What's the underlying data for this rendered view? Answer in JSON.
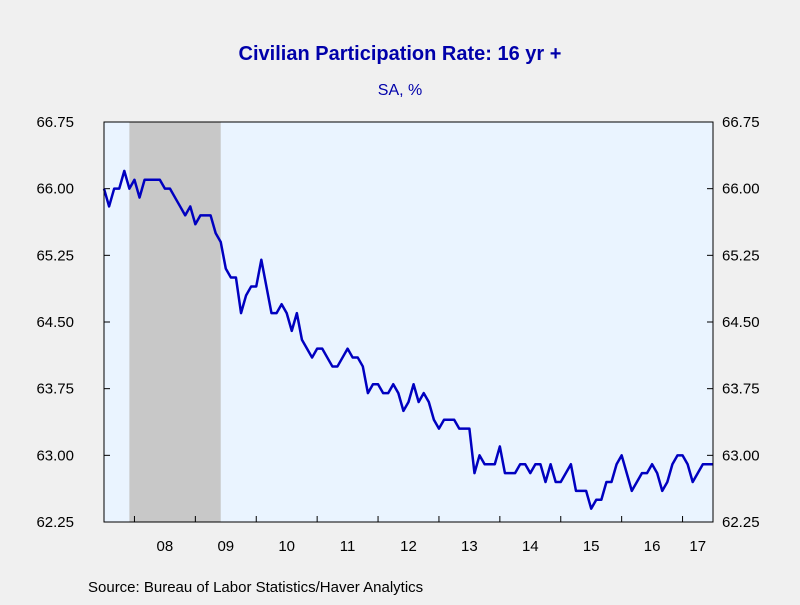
{
  "chart_data": {
    "type": "line",
    "title": "Civilian Participation Rate: 16 yr +",
    "subtitle": "SA, %",
    "source": "Source:  Bureau of Labor Statistics/Haver Analytics",
    "ylim": [
      62.25,
      66.75
    ],
    "yticks": [
      "62.25",
      "63.00",
      "63.75",
      "64.50",
      "65.25",
      "66.00",
      "66.75"
    ],
    "x_start": "2007-07",
    "x_end": "2017-07",
    "x_tick_labels": [
      {
        "label": "08",
        "year": 2008
      },
      {
        "label": "09",
        "year": 2009
      },
      {
        "label": "10",
        "year": 2010
      },
      {
        "label": "11",
        "year": 2011
      },
      {
        "label": "12",
        "year": 2012
      },
      {
        "label": "13",
        "year": 2013
      },
      {
        "label": "14",
        "year": 2014
      },
      {
        "label": "15",
        "year": 2015
      },
      {
        "label": "16",
        "year": 2016
      },
      {
        "label": "17",
        "year": 2017
      }
    ],
    "recession": {
      "start": "2007-12",
      "end": "2009-06"
    },
    "grid": false,
    "colors": {
      "line": "#0000c0",
      "title": "#0000aa",
      "plot_bg": "#eaf4ff",
      "recession": "#c8c8c8",
      "page_bg": "#f0f0f0"
    },
    "series": [
      {
        "start": "2007-07",
        "values": [
          66.0,
          65.8,
          66.0,
          66.0,
          66.2,
          66.0,
          66.1,
          65.9,
          66.1,
          66.1,
          66.1,
          66.1,
          66.0,
          66.0,
          65.9,
          65.8,
          65.7,
          65.8,
          65.6,
          65.7,
          65.7,
          65.7,
          65.5,
          65.4,
          65.1,
          65.0,
          65.0,
          64.6,
          64.8,
          64.9,
          64.9,
          65.2,
          64.9,
          64.6,
          64.6,
          64.7,
          64.6,
          64.4,
          64.6,
          64.3,
          64.2,
          64.1,
          64.2,
          64.2,
          64.1,
          64.0,
          64.0,
          64.1,
          64.2,
          64.1,
          64.1,
          64.0,
          63.7,
          63.8,
          63.8,
          63.7,
          63.7,
          63.8,
          63.7,
          63.5,
          63.6,
          63.8,
          63.6,
          63.7,
          63.6,
          63.4,
          63.3,
          63.4,
          63.4,
          63.4,
          63.3,
          63.3,
          63.3,
          62.8,
          63.0,
          62.9,
          62.9,
          62.9,
          63.1,
          62.8,
          62.8,
          62.8,
          62.9,
          62.9,
          62.8,
          62.9,
          62.9,
          62.7,
          62.9,
          62.7,
          62.7,
          62.8,
          62.9,
          62.6,
          62.6,
          62.6,
          62.4,
          62.5,
          62.5,
          62.7,
          62.7,
          62.9,
          63.0,
          62.8,
          62.6,
          62.7,
          62.8,
          62.8,
          62.9,
          62.8,
          62.6,
          62.7,
          62.9,
          63.0,
          63.0,
          62.9,
          62.7,
          62.8,
          62.9,
          62.9,
          62.9
        ]
      }
    ]
  }
}
